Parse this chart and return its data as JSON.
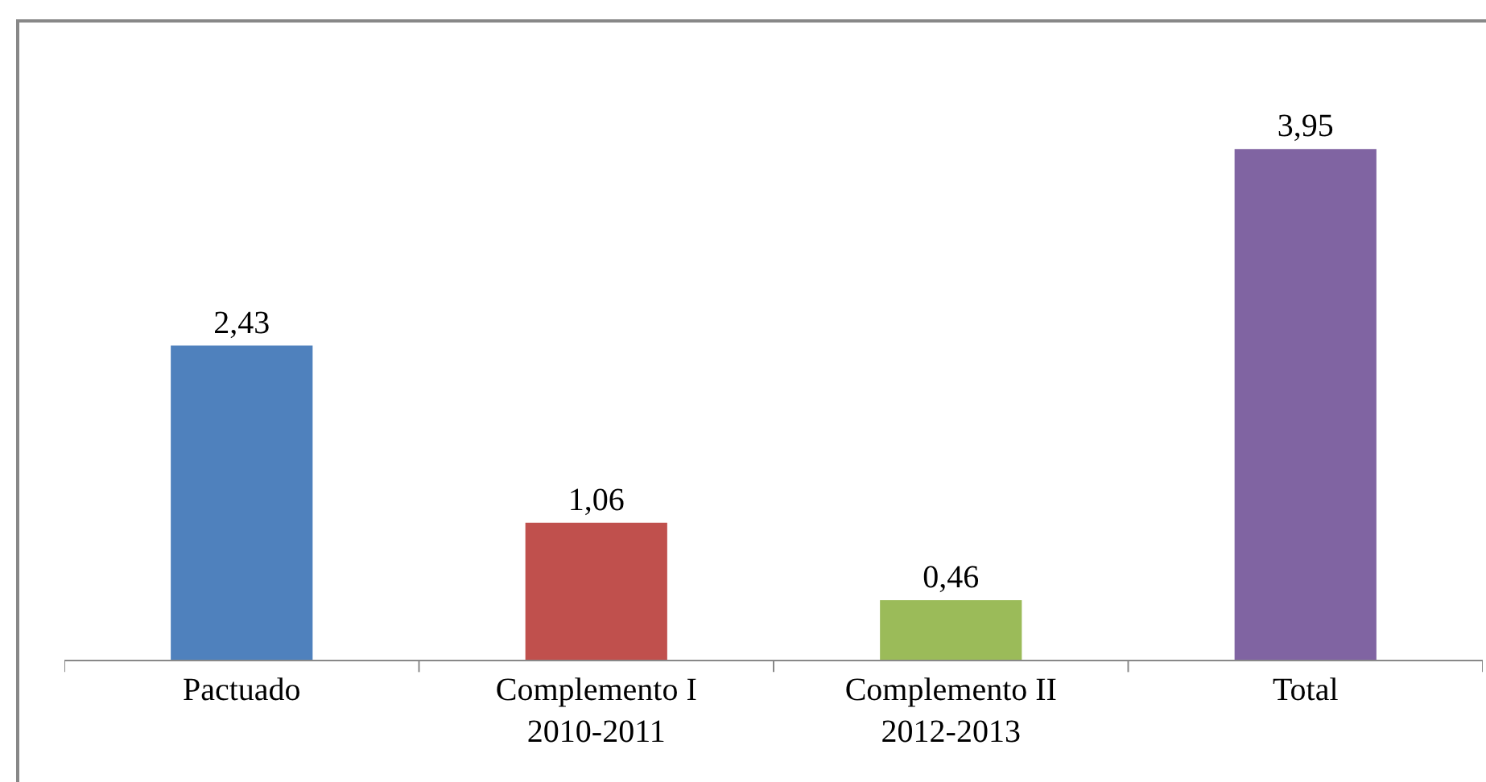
{
  "chart_data": {
    "type": "bar",
    "categories": [
      "Pactuado",
      "Complemento I\n2010-2011",
      "Complemento II\n2012-2013",
      "Total"
    ],
    "values": [
      2.43,
      1.06,
      0.46,
      3.95
    ],
    "colors": [
      "#4f81bd",
      "#c0504d",
      "#9bbb59",
      "#8064a2"
    ],
    "value_labels": [
      "2,43",
      "1,06",
      "0,46",
      "3,95"
    ],
    "grid": false,
    "legend": false
  }
}
